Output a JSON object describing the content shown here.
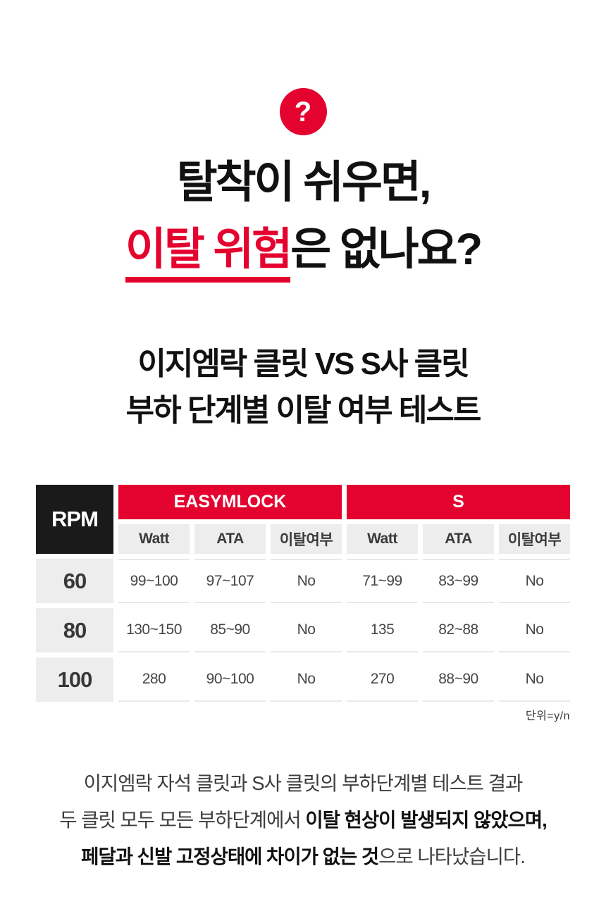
{
  "badge": {
    "question_mark": "?"
  },
  "title": {
    "line1": "탈착이 쉬우면,",
    "line2_highlight": "이탈 위험",
    "line2_rest": "은 없나요?"
  },
  "subtitle": {
    "line1": "이지엠락 클릿 VS S사 클릿",
    "line2": "부하 단계별 이탈 여부 테스트"
  },
  "table": {
    "rpm_header": "RPM",
    "groups": [
      {
        "label": "EASYMLOCK",
        "columns": [
          "Watt",
          "ATA",
          "이탈여부"
        ]
      },
      {
        "label": "S",
        "columns": [
          "Watt",
          "ATA",
          "이탈여부"
        ]
      }
    ],
    "rows": [
      {
        "rpm": "60",
        "easymlock": {
          "watt": "99~100",
          "ata": "97~107",
          "release": "No"
        },
        "s": {
          "watt": "71~99",
          "ata": "83~99",
          "release": "No"
        }
      },
      {
        "rpm": "80",
        "easymlock": {
          "watt": "130~150",
          "ata": "85~90",
          "release": "No"
        },
        "s": {
          "watt": "135",
          "ata": "82~88",
          "release": "No"
        }
      },
      {
        "rpm": "100",
        "easymlock": {
          "watt": "280",
          "ata": "90~100",
          "release": "No"
        },
        "s": {
          "watt": "270",
          "ata": "88~90",
          "release": "No"
        }
      }
    ],
    "unit_note": "단위=y/n"
  },
  "summary": {
    "line1": "이지엠락 자석 클릿과 S사 클릿의 부하단계별 테스트 결과",
    "line2_regular": "두 클릿 모두 모든 부하단계에서 ",
    "line2_bold": "이탈 현상이 발생되지 않았으며,",
    "line3_bold": "페달과 신발 고정상태에 차이가 없는 것",
    "line3_regular": "으로 나타났습니다."
  },
  "colors": {
    "accent_red": "#E4032E",
    "header_black": "#1A1A1A",
    "cell_gray": "#EDEDED",
    "text_dark": "#3D3D3D"
  },
  "chart_data": {
    "type": "table",
    "title": "이지엠락 클릿 VS S사 클릿 부하 단계별 이탈 여부 테스트",
    "row_header": "RPM",
    "column_groups": [
      "EASYMLOCK",
      "S"
    ],
    "columns": [
      "Watt",
      "ATA",
      "이탈여부"
    ],
    "rows": [
      {
        "rpm": 60,
        "EASYMLOCK": {
          "Watt": "99~100",
          "ATA": "97~107",
          "이탈여부": "No"
        },
        "S": {
          "Watt": "71~99",
          "ATA": "83~99",
          "이탈여부": "No"
        }
      },
      {
        "rpm": 80,
        "EASYMLOCK": {
          "Watt": "130~150",
          "ATA": "85~90",
          "이탈여부": "No"
        },
        "S": {
          "Watt": "135",
          "ATA": "82~88",
          "이탈여부": "No"
        }
      },
      {
        "rpm": 100,
        "EASYMLOCK": {
          "Watt": "280",
          "ATA": "90~100",
          "이탈여부": "No"
        },
        "S": {
          "Watt": "270",
          "ATA": "88~90",
          "이탈여부": "No"
        }
      }
    ],
    "unit": "단위=y/n"
  }
}
